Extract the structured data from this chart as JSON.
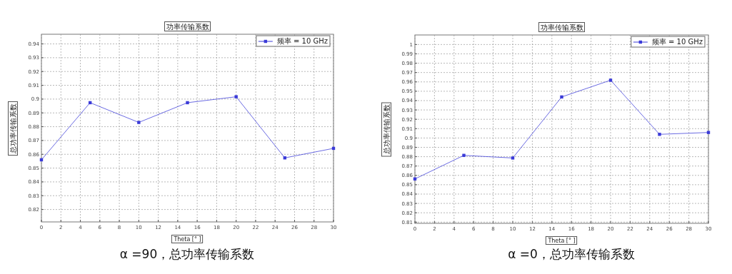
{
  "chart_data": [
    {
      "type": "line",
      "title": "功率传输系数",
      "xlabel": "Theta [° ]",
      "ylabel": "总功率传输系数",
      "annotations": [
        "α =90，总功率传输系数"
      ],
      "x": [
        0,
        5,
        10,
        15,
        20,
        25,
        30
      ],
      "series": [
        {
          "name": "频率 = 10 GHz",
          "color": "#3a3ad8",
          "values": [
            0.856,
            0.8974,
            0.8831,
            0.8974,
            0.9017,
            0.8574,
            0.8643
          ]
        }
      ],
      "xlim": [
        0,
        30
      ],
      "xticks": [
        0,
        2,
        4,
        6,
        8,
        10,
        12,
        14,
        16,
        18,
        20,
        22,
        24,
        26,
        28,
        30
      ],
      "ylim": [
        0.811,
        0.947
      ],
      "yticks": [
        0.82,
        0.83,
        0.84,
        0.85,
        0.86,
        0.87,
        0.88,
        0.89,
        0.9,
        0.91,
        0.92,
        0.93,
        0.94
      ],
      "grid": true,
      "legend": "top right",
      "marker": "square"
    },
    {
      "type": "line",
      "title": "功率传输系数",
      "xlabel": "Theta [° ]",
      "ylabel": "总功率传输系数",
      "annotations": [
        "α =0，总功率传输系数"
      ],
      "x": [
        0,
        5,
        10,
        15,
        20,
        25,
        30
      ],
      "series": [
        {
          "name": "频率 = 10 GHz",
          "color": "#3a3ad8",
          "values": [
            0.8562,
            0.8814,
            0.8786,
            0.9439,
            0.9618,
            0.9039,
            0.9059
          ]
        }
      ],
      "xlim": [
        0,
        30
      ],
      "xticks": [
        0,
        2,
        4,
        6,
        8,
        10,
        12,
        14,
        16,
        18,
        20,
        22,
        24,
        26,
        28,
        30
      ],
      "ylim": [
        0.8087,
        1.0102
      ],
      "yticks": [
        0.81,
        0.82,
        0.83,
        0.84,
        0.85,
        0.86,
        0.87,
        0.88,
        0.89,
        0.9,
        0.91,
        0.92,
        0.93,
        0.94,
        0.95,
        0.96,
        0.97,
        0.98,
        0.99,
        1
      ],
      "grid": true,
      "legend": "top right",
      "marker": "square"
    }
  ]
}
